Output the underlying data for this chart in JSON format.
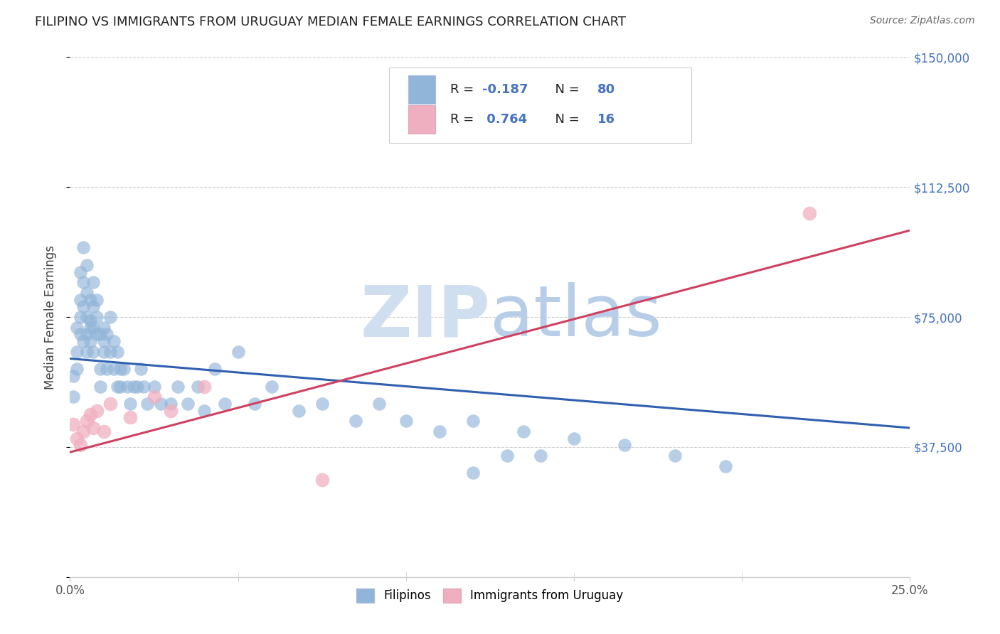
{
  "title": "FILIPINO VS IMMIGRANTS FROM URUGUAY MEDIAN FEMALE EARNINGS CORRELATION CHART",
  "source": "Source: ZipAtlas.com",
  "ylabel": "Median Female Earnings",
  "x_min": 0.0,
  "x_max": 0.25,
  "y_min": 0,
  "y_max": 150000,
  "y_ticks": [
    0,
    37500,
    75000,
    112500,
    150000
  ],
  "y_tick_labels": [
    "",
    "$37,500",
    "$75,000",
    "$112,500",
    "$150,000"
  ],
  "filipinos_x": [
    0.001,
    0.001,
    0.002,
    0.002,
    0.002,
    0.003,
    0.003,
    0.003,
    0.003,
    0.004,
    0.004,
    0.004,
    0.004,
    0.005,
    0.005,
    0.005,
    0.005,
    0.005,
    0.006,
    0.006,
    0.006,
    0.006,
    0.007,
    0.007,
    0.007,
    0.007,
    0.008,
    0.008,
    0.008,
    0.009,
    0.009,
    0.009,
    0.01,
    0.01,
    0.01,
    0.011,
    0.011,
    0.012,
    0.012,
    0.013,
    0.013,
    0.014,
    0.014,
    0.015,
    0.015,
    0.016,
    0.017,
    0.018,
    0.019,
    0.02,
    0.021,
    0.022,
    0.023,
    0.025,
    0.027,
    0.03,
    0.032,
    0.035,
    0.038,
    0.04,
    0.043,
    0.046,
    0.05,
    0.055,
    0.06,
    0.068,
    0.075,
    0.085,
    0.092,
    0.1,
    0.11,
    0.12,
    0.135,
    0.15,
    0.165,
    0.18,
    0.195,
    0.12,
    0.13,
    0.14
  ],
  "filipinos_y": [
    58000,
    52000,
    65000,
    72000,
    60000,
    80000,
    88000,
    70000,
    75000,
    68000,
    95000,
    78000,
    85000,
    70000,
    75000,
    82000,
    90000,
    65000,
    72000,
    80000,
    68000,
    74000,
    78000,
    85000,
    72000,
    65000,
    80000,
    70000,
    75000,
    60000,
    70000,
    55000,
    68000,
    72000,
    65000,
    70000,
    60000,
    75000,
    65000,
    68000,
    60000,
    55000,
    65000,
    60000,
    55000,
    60000,
    55000,
    50000,
    55000,
    55000,
    60000,
    55000,
    50000,
    55000,
    50000,
    50000,
    55000,
    50000,
    55000,
    48000,
    60000,
    50000,
    65000,
    50000,
    55000,
    48000,
    50000,
    45000,
    50000,
    45000,
    42000,
    45000,
    42000,
    40000,
    38000,
    35000,
    32000,
    30000,
    35000,
    35000
  ],
  "uruguay_x": [
    0.001,
    0.002,
    0.003,
    0.004,
    0.005,
    0.006,
    0.007,
    0.008,
    0.01,
    0.012,
    0.018,
    0.025,
    0.03,
    0.04,
    0.075,
    0.22
  ],
  "uruguay_y": [
    44000,
    40000,
    38000,
    42000,
    45000,
    47000,
    43000,
    48000,
    42000,
    50000,
    46000,
    52000,
    48000,
    55000,
    28000,
    105000
  ],
  "blue_color": "#91b5d9",
  "pink_color": "#f0afc0",
  "blue_line_color": "#3060b0",
  "pink_line_color": "#d04060",
  "title_color": "#222222",
  "source_color": "#666666",
  "axis_label_color": "#444444",
  "tick_label_color_right": "#4472c4",
  "legend_R_color": "#4472c4",
  "watermark_zip": "ZIP",
  "watermark_atlas": "atlas",
  "watermark_color_light": "#d0dff0",
  "watermark_color_dark": "#b8cee8",
  "filipinos_label": "Filipinos",
  "uruguay_label": "Immigrants from Uruguay",
  "legend_line1_r": "-0.187",
  "legend_line1_n": "80",
  "legend_line2_r": "0.764",
  "legend_line2_n": "16",
  "blue_trend_x0": 0.0,
  "blue_trend_y0": 63000,
  "blue_trend_x1": 0.25,
  "blue_trend_y1": 43000,
  "pink_trend_x0": 0.0,
  "pink_trend_y0": 36000,
  "pink_trend_x1": 0.25,
  "pink_trend_y1": 100000,
  "grid_color": "#d0d0d0",
  "background_color": "#ffffff"
}
